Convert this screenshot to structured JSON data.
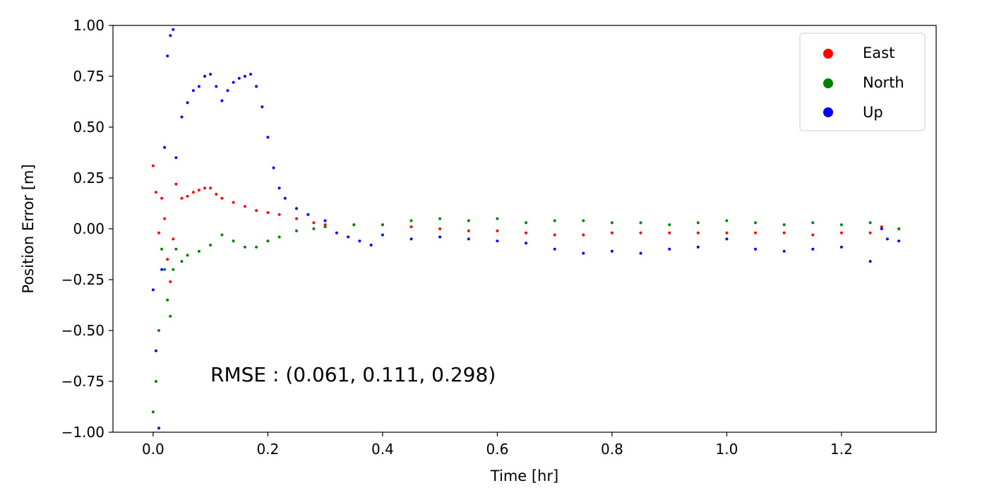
{
  "chart_data": {
    "type": "scatter",
    "title": "",
    "xlabel": "Time [hr]",
    "ylabel": "Position Error [m]",
    "xlim": [
      -0.07,
      1.365
    ],
    "ylim": [
      -1.0,
      1.0
    ],
    "xticks": [
      0.0,
      0.2,
      0.4,
      0.6,
      0.8,
      1.0,
      1.2
    ],
    "xtick_labels": [
      "0.0",
      "0.2",
      "0.4",
      "0.6",
      "0.8",
      "1.0",
      "1.2"
    ],
    "yticks": [
      1.0,
      0.75,
      0.5,
      0.25,
      0.0,
      -0.25,
      -0.5,
      -0.75,
      -1.0
    ],
    "ytick_labels": [
      "1.00",
      "0.75",
      "0.50",
      "0.25",
      "0.00",
      "−0.25",
      "−0.50",
      "−0.75",
      "−1.00"
    ],
    "grid": false,
    "legend_position": "top-right",
    "annotation": "RMSE : (0.061, 0.111, 0.298)",
    "series": [
      {
        "name": "East",
        "color": "#ff0000",
        "x": [
          0.0,
          0.005,
          0.01,
          0.015,
          0.02,
          0.025,
          0.03,
          0.035,
          0.04,
          0.05,
          0.06,
          0.07,
          0.08,
          0.09,
          0.1,
          0.11,
          0.12,
          0.14,
          0.16,
          0.18,
          0.2,
          0.22,
          0.25,
          0.28,
          0.3,
          0.35,
          0.4,
          0.45,
          0.5,
          0.55,
          0.6,
          0.65,
          0.7,
          0.75,
          0.8,
          0.85,
          0.9,
          0.95,
          1.0,
          1.05,
          1.1,
          1.15,
          1.2,
          1.25,
          1.27,
          1.3
        ],
        "y": [
          0.31,
          0.18,
          -0.02,
          0.15,
          0.05,
          -0.15,
          -0.26,
          -0.05,
          0.22,
          0.15,
          0.16,
          0.18,
          0.19,
          0.2,
          0.2,
          0.17,
          0.15,
          0.13,
          0.11,
          0.09,
          0.08,
          0.07,
          0.05,
          0.03,
          0.02,
          0.02,
          0.02,
          0.01,
          0.0,
          -0.01,
          -0.01,
          -0.02,
          -0.03,
          -0.03,
          -0.02,
          -0.02,
          -0.02,
          -0.02,
          -0.02,
          -0.02,
          -0.02,
          -0.03,
          -0.02,
          -0.02,
          0.01,
          0.0
        ]
      },
      {
        "name": "North",
        "color": "#008000",
        "x": [
          0.0,
          0.005,
          0.01,
          0.015,
          0.02,
          0.025,
          0.03,
          0.035,
          0.04,
          0.05,
          0.06,
          0.08,
          0.1,
          0.12,
          0.14,
          0.16,
          0.18,
          0.2,
          0.22,
          0.25,
          0.28,
          0.3,
          0.35,
          0.4,
          0.45,
          0.5,
          0.55,
          0.6,
          0.65,
          0.7,
          0.75,
          0.8,
          0.85,
          0.9,
          0.95,
          1.0,
          1.05,
          1.1,
          1.15,
          1.2,
          1.25,
          1.3
        ],
        "y": [
          -0.9,
          -0.75,
          -0.5,
          -0.1,
          -0.2,
          -0.35,
          -0.43,
          -0.2,
          -0.1,
          -0.16,
          -0.13,
          -0.11,
          -0.08,
          -0.03,
          -0.06,
          -0.09,
          -0.09,
          -0.06,
          -0.04,
          -0.01,
          0.0,
          0.01,
          0.02,
          0.02,
          0.04,
          0.05,
          0.04,
          0.05,
          0.03,
          0.04,
          0.04,
          0.03,
          0.03,
          0.02,
          0.03,
          0.04,
          0.03,
          0.02,
          0.03,
          0.02,
          0.03,
          0.0
        ]
      },
      {
        "name": "Up",
        "color": "#0000ff",
        "x": [
          0.0,
          0.005,
          0.01,
          0.015,
          0.02,
          0.025,
          0.03,
          0.035,
          0.04,
          0.05,
          0.06,
          0.07,
          0.08,
          0.09,
          0.1,
          0.11,
          0.12,
          0.13,
          0.14,
          0.15,
          0.16,
          0.17,
          0.18,
          0.19,
          0.2,
          0.21,
          0.22,
          0.23,
          0.25,
          0.27,
          0.3,
          0.32,
          0.34,
          0.36,
          0.38,
          0.4,
          0.45,
          0.5,
          0.55,
          0.6,
          0.65,
          0.7,
          0.75,
          0.8,
          0.85,
          0.9,
          0.95,
          1.0,
          1.05,
          1.1,
          1.15,
          1.2,
          1.25,
          1.27,
          1.28,
          1.3
        ],
        "y": [
          -0.3,
          -0.6,
          -0.98,
          -0.2,
          0.4,
          0.85,
          0.95,
          0.98,
          0.35,
          0.55,
          0.62,
          0.68,
          0.7,
          0.75,
          0.76,
          0.7,
          0.63,
          0.68,
          0.72,
          0.74,
          0.75,
          0.76,
          0.7,
          0.6,
          0.45,
          0.3,
          0.2,
          0.15,
          0.1,
          0.07,
          0.04,
          -0.02,
          -0.04,
          -0.06,
          -0.08,
          -0.03,
          -0.05,
          -0.04,
          -0.05,
          -0.06,
          -0.07,
          -0.1,
          -0.12,
          -0.11,
          -0.12,
          -0.1,
          -0.09,
          -0.05,
          -0.1,
          -0.11,
          -0.1,
          -0.09,
          -0.16,
          0.0,
          -0.05,
          -0.06
        ]
      }
    ]
  }
}
